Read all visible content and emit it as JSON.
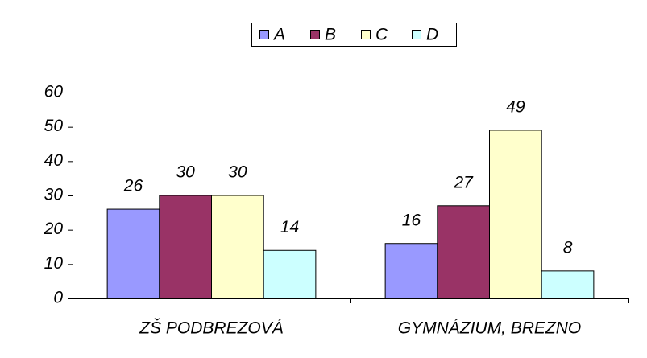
{
  "chart_data": {
    "type": "bar",
    "categories": [
      "ZŠ PODBREZOVÁ",
      "GYMNÁZIUM, BREZNO"
    ],
    "series": [
      {
        "name": "A",
        "color": "#9999ff",
        "values": [
          26,
          16
        ]
      },
      {
        "name": "B",
        "color": "#993366",
        "values": [
          30,
          27
        ]
      },
      {
        "name": "C",
        "color": "#ffffcc",
        "values": [
          30,
          49
        ]
      },
      {
        "name": "D",
        "color": "#ccffff",
        "values": [
          14,
          8
        ]
      }
    ],
    "ylim": [
      0,
      60
    ],
    "yticks": [
      0,
      10,
      20,
      30,
      40,
      50,
      60
    ],
    "grid": false,
    "legend": "top"
  }
}
